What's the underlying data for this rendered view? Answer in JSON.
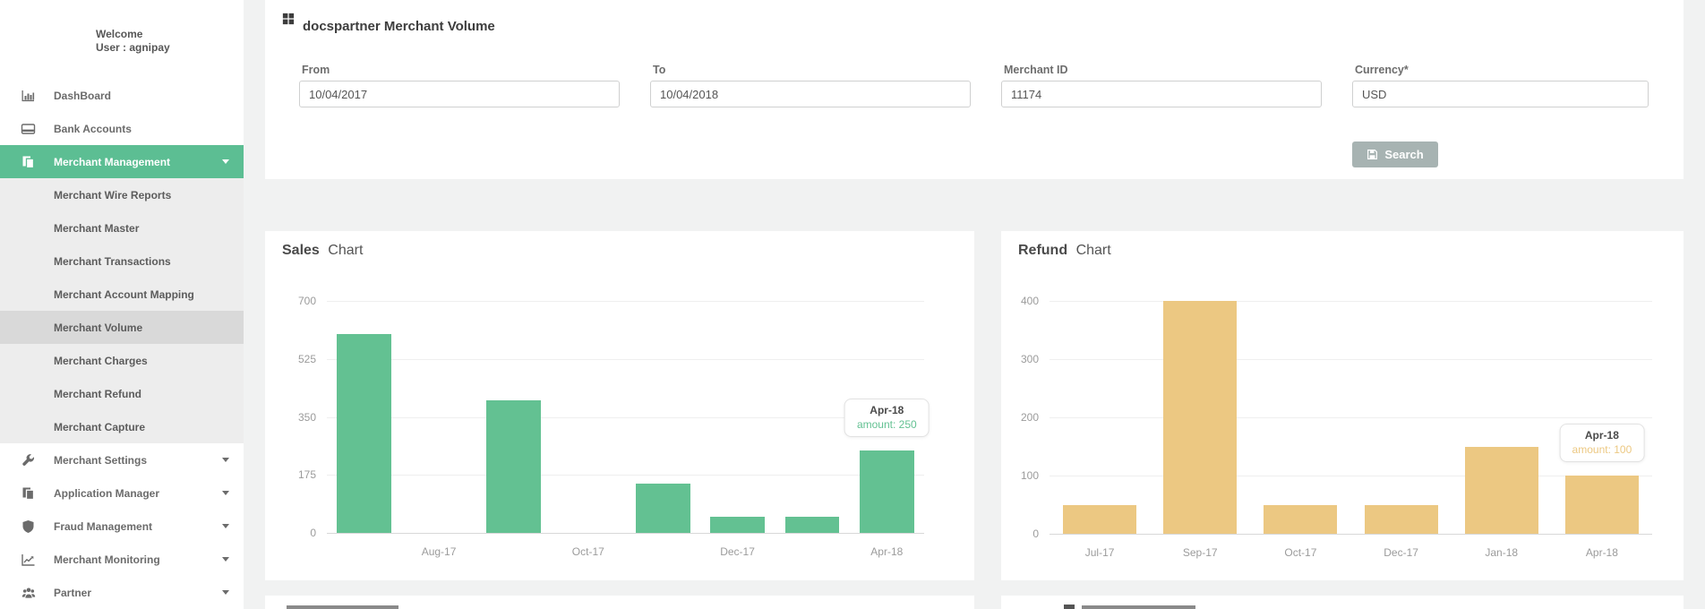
{
  "page_bg": "#f1f2f2",
  "sidebar": {
    "welcome_line1": "Welcome",
    "welcome_line2": "User : agnipay",
    "active_color": "#5cbe93",
    "items": [
      {
        "label": "DashBoard",
        "icon": "bar-chart",
        "type": "top"
      },
      {
        "label": "Bank Accounts",
        "icon": "credit-card",
        "type": "top"
      },
      {
        "label": "Merchant Management",
        "icon": "files",
        "type": "top",
        "active": true,
        "caret": true
      },
      {
        "label": "Merchant Wire Reports",
        "type": "sub"
      },
      {
        "label": "Merchant Master",
        "type": "sub"
      },
      {
        "label": "Merchant Transactions",
        "type": "sub"
      },
      {
        "label": "Merchant Account Mapping",
        "type": "sub"
      },
      {
        "label": "Merchant Volume",
        "type": "sub",
        "active": true
      },
      {
        "label": "Merchant Charges",
        "type": "sub"
      },
      {
        "label": "Merchant Refund",
        "type": "sub"
      },
      {
        "label": "Merchant Capture",
        "type": "sub"
      },
      {
        "label": "Merchant Settings",
        "icon": "wrench",
        "type": "top",
        "caret": true
      },
      {
        "label": "Application Manager",
        "icon": "files",
        "type": "top",
        "caret": true
      },
      {
        "label": "Fraud Management",
        "icon": "shield",
        "type": "top",
        "caret": true
      },
      {
        "label": "Merchant Monitoring",
        "icon": "line-chart",
        "type": "top",
        "caret": true
      },
      {
        "label": "Partner",
        "icon": "users",
        "type": "top",
        "caret": true
      }
    ]
  },
  "header": {
    "title": "docspartner Merchant Volume",
    "icon": "grid-icon"
  },
  "filters": {
    "fields": [
      {
        "label": "From",
        "value": "10/04/2017"
      },
      {
        "label": "To",
        "value": "10/04/2018"
      },
      {
        "label": "Merchant ID",
        "value": "11174"
      },
      {
        "label": "Currency*",
        "value": "USD"
      }
    ],
    "search_label": "Search",
    "search_icon": "floppy-disk-icon",
    "search_button_color": "#a7b3b2"
  },
  "chart_data": [
    {
      "type": "bar",
      "title_bold": "Sales",
      "title_rest": "Chart",
      "slots": 8,
      "bars": [
        {
          "slot": 0,
          "value": 600
        },
        {
          "slot": 2,
          "value": 400
        },
        {
          "slot": 4,
          "value": 150
        },
        {
          "slot": 5,
          "value": 50
        },
        {
          "slot": 6,
          "value": 50
        },
        {
          "slot": 7,
          "value": 250
        }
      ],
      "x_tick_labels": [
        {
          "slot": 1,
          "label": "Aug-17"
        },
        {
          "slot": 3,
          "label": "Oct-17"
        },
        {
          "slot": 5,
          "label": "Dec-17"
        },
        {
          "slot": 7,
          "label": "Apr-18"
        }
      ],
      "y_ticks": [
        700,
        525,
        350,
        175,
        0
      ],
      "ylim": [
        0,
        700
      ],
      "grid": true,
      "legend": "none",
      "bar_color": "#63c192",
      "tooltip": {
        "slot": 7,
        "title": "Apr-18",
        "text": "amount: 250"
      }
    },
    {
      "type": "bar",
      "title_bold": "Refund",
      "title_rest": "Chart",
      "slots": 6,
      "bars": [
        {
          "slot": 0,
          "value": 50
        },
        {
          "slot": 1,
          "value": 400
        },
        {
          "slot": 2,
          "value": 50
        },
        {
          "slot": 3,
          "value": 50
        },
        {
          "slot": 4,
          "value": 150
        },
        {
          "slot": 5,
          "value": 100
        }
      ],
      "x_tick_labels": [
        {
          "slot": 0,
          "label": "Jul-17"
        },
        {
          "slot": 1,
          "label": "Sep-17"
        },
        {
          "slot": 2,
          "label": "Oct-17"
        },
        {
          "slot": 3,
          "label": "Dec-17"
        },
        {
          "slot": 4,
          "label": "Jan-18"
        },
        {
          "slot": 5,
          "label": "Apr-18"
        }
      ],
      "y_ticks": [
        400,
        300,
        200,
        100,
        0
      ],
      "ylim": [
        0,
        400
      ],
      "grid": true,
      "legend": "none",
      "bar_color": "#ecc882",
      "tooltip": {
        "slot": 5,
        "title": "Apr-18",
        "text": "amount: 100"
      }
    }
  ]
}
